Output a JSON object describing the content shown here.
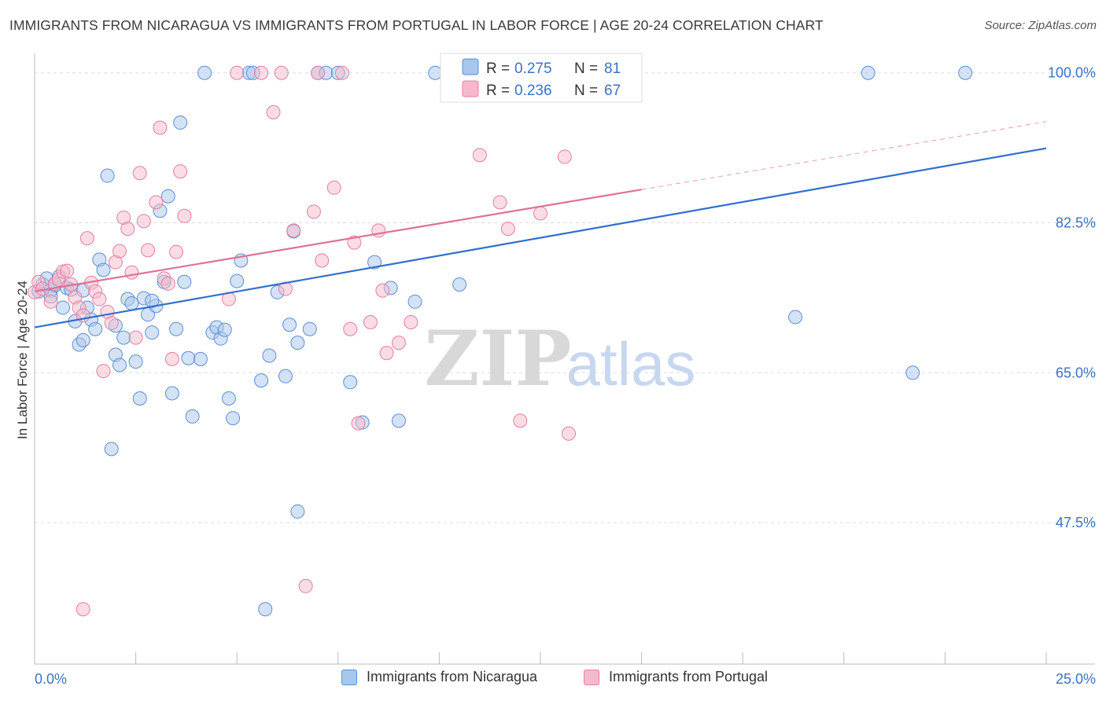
{
  "title": "IMMIGRANTS FROM NICARAGUA VS IMMIGRANTS FROM PORTUGAL IN LABOR FORCE | AGE 20-24 CORRELATION CHART",
  "source": "Source: ZipAtlas.com",
  "watermark": {
    "zip": "ZIP",
    "atlas": "atlas"
  },
  "colors": {
    "blue_fill": "#a9c6ec",
    "blue_stroke": "#5b8fd6",
    "blue_line": "#2f6fce",
    "pink_fill": "#f5b9cc",
    "pink_stroke": "#e57fa0",
    "pink_line": "#e0709a",
    "axis_label_blue": "#3b72c4",
    "grid": "#dddddd"
  },
  "legend_top": {
    "series1": {
      "r_label": "R = ",
      "r_value": "0.275",
      "n_label": "N = ",
      "n_value": "81"
    },
    "series2": {
      "r_label": "R = ",
      "r_value": "0.236",
      "n_label": "N = ",
      "n_value": "67"
    }
  },
  "chart_data": {
    "type": "scatter",
    "title": "IMMIGRANTS FROM NICARAGUA VS IMMIGRANTS FROM PORTUGAL IN LABOR FORCE | AGE 20-24 CORRELATION CHART",
    "xlabel": "",
    "ylabel": "In Labor Force | Age 20-24",
    "xlim": [
      0,
      25
    ],
    "ylim": [
      31,
      103
    ],
    "x_tick_labels": [
      "0.0%",
      "25.0%"
    ],
    "y_ticks": [
      47.5,
      65.0,
      82.5,
      100.0
    ],
    "y_tick_labels": [
      "47.5%",
      "65.0%",
      "82.5%",
      "100.0%"
    ],
    "grid": true,
    "legend_placement": "bottom",
    "series": [
      {
        "name": "Immigrants from Nicaragua",
        "color": "#5b8fd6",
        "trend": {
          "x": [
            0,
            25
          ],
          "y": [
            70.3,
            91.2
          ],
          "dashed_from": null
        },
        "points": [
          [
            0.1,
            74.5
          ],
          [
            0.2,
            75.3
          ],
          [
            0.3,
            76.0
          ],
          [
            0.4,
            74.6
          ],
          [
            0.5,
            75.2
          ],
          [
            0.6,
            76.2
          ],
          [
            0.7,
            72.6
          ],
          [
            0.8,
            74.9
          ],
          [
            0.9,
            74.7
          ],
          [
            1.0,
            71.0
          ],
          [
            1.1,
            68.3
          ],
          [
            1.2,
            68.8
          ],
          [
            1.3,
            72.6
          ],
          [
            1.4,
            71.2
          ],
          [
            1.5,
            70.1
          ],
          [
            1.6,
            78.2
          ],
          [
            1.7,
            77.0
          ],
          [
            1.8,
            88.0
          ],
          [
            1.9,
            56.1
          ],
          [
            2.0,
            67.1
          ],
          [
            2.1,
            65.9
          ],
          [
            2.2,
            69.1
          ],
          [
            2.3,
            73.6
          ],
          [
            2.4,
            73.1
          ],
          [
            2.5,
            66.3
          ],
          [
            2.6,
            62.0
          ],
          [
            2.7,
            73.7
          ],
          [
            2.8,
            71.8
          ],
          [
            2.9,
            69.7
          ],
          [
            3.0,
            72.8
          ],
          [
            3.1,
            83.9
          ],
          [
            3.2,
            75.6
          ],
          [
            3.3,
            85.6
          ],
          [
            3.4,
            62.6
          ],
          [
            3.5,
            70.1
          ],
          [
            3.6,
            94.2
          ],
          [
            3.8,
            66.7
          ],
          [
            3.9,
            59.9
          ],
          [
            4.4,
            69.7
          ],
          [
            4.5,
            70.3
          ],
          [
            4.6,
            69.0
          ],
          [
            4.7,
            70.0
          ],
          [
            4.8,
            62.0
          ],
          [
            4.9,
            59.7
          ],
          [
            5.0,
            75.7
          ],
          [
            5.1,
            78.1
          ],
          [
            5.6,
            64.1
          ],
          [
            5.8,
            67.0
          ],
          [
            6.0,
            74.4
          ],
          [
            6.2,
            64.6
          ],
          [
            6.3,
            70.6
          ],
          [
            6.4,
            81.5
          ],
          [
            6.5,
            68.5
          ],
          [
            6.5,
            48.8
          ],
          [
            6.8,
            70.1
          ],
          [
            7.0,
            100.0
          ],
          [
            7.2,
            100.0
          ],
          [
            7.5,
            100.0
          ],
          [
            7.8,
            63.9
          ],
          [
            8.1,
            59.2
          ],
          [
            8.4,
            77.9
          ],
          [
            8.8,
            74.9
          ],
          [
            9.0,
            59.4
          ],
          [
            9.4,
            73.3
          ],
          [
            9.9,
            100.0
          ],
          [
            10.4,
            100.0
          ],
          [
            10.5,
            75.3
          ],
          [
            5.7,
            37.4
          ],
          [
            18.8,
            71.5
          ],
          [
            20.6,
            100.0
          ],
          [
            23.0,
            100.0
          ],
          [
            21.7,
            65.0
          ],
          [
            4.2,
            100.0
          ],
          [
            5.3,
            100.0
          ],
          [
            5.4,
            100.0
          ],
          [
            4.1,
            66.6
          ],
          [
            2.0,
            70.5
          ],
          [
            1.2,
            74.6
          ],
          [
            0.4,
            73.9
          ],
          [
            2.9,
            73.4
          ],
          [
            3.7,
            75.6
          ]
        ]
      },
      {
        "name": "Immigrants from Portugal",
        "color": "#e57fa0",
        "trend": {
          "x": [
            0,
            25
          ],
          "y": [
            74.5,
            94.3
          ],
          "dashed_from": 15.0
        },
        "points": [
          [
            0.0,
            74.4
          ],
          [
            0.1,
            75.6
          ],
          [
            0.2,
            74.8
          ],
          [
            0.4,
            73.3
          ],
          [
            0.5,
            75.4
          ],
          [
            0.6,
            75.9
          ],
          [
            0.7,
            76.8
          ],
          [
            0.8,
            76.9
          ],
          [
            0.9,
            75.3
          ],
          [
            1.0,
            73.8
          ],
          [
            1.1,
            72.6
          ],
          [
            1.2,
            71.7
          ],
          [
            1.3,
            80.7
          ],
          [
            1.4,
            75.5
          ],
          [
            1.5,
            74.5
          ],
          [
            1.6,
            73.6
          ],
          [
            1.7,
            65.2
          ],
          [
            1.8,
            72.1
          ],
          [
            1.9,
            70.8
          ],
          [
            2.0,
            77.9
          ],
          [
            2.1,
            79.2
          ],
          [
            2.2,
            83.1
          ],
          [
            2.3,
            81.8
          ],
          [
            2.4,
            76.7
          ],
          [
            2.5,
            69.1
          ],
          [
            2.6,
            88.3
          ],
          [
            2.7,
            82.7
          ],
          [
            2.8,
            79.3
          ],
          [
            3.0,
            84.9
          ],
          [
            3.1,
            93.6
          ],
          [
            3.2,
            76.0
          ],
          [
            3.3,
            75.4
          ],
          [
            3.4,
            66.6
          ],
          [
            3.5,
            79.1
          ],
          [
            3.6,
            88.5
          ],
          [
            3.7,
            83.3
          ],
          [
            4.8,
            73.6
          ],
          [
            5.9,
            95.4
          ],
          [
            6.2,
            74.8
          ],
          [
            6.4,
            81.6
          ],
          [
            6.7,
            40.1
          ],
          [
            6.9,
            83.8
          ],
          [
            7.1,
            78.1
          ],
          [
            7.4,
            86.6
          ],
          [
            7.6,
            100.0
          ],
          [
            7.8,
            70.1
          ],
          [
            7.9,
            80.2
          ],
          [
            8.3,
            70.9
          ],
          [
            8.5,
            81.6
          ],
          [
            8.6,
            74.6
          ],
          [
            8.7,
            67.3
          ],
          [
            9.0,
            68.5
          ],
          [
            9.3,
            70.9
          ],
          [
            11.0,
            90.4
          ],
          [
            11.5,
            84.9
          ],
          [
            11.7,
            81.8
          ],
          [
            11.9,
            100.0
          ],
          [
            12.0,
            59.4
          ],
          [
            12.5,
            83.6
          ],
          [
            13.1,
            90.2
          ],
          [
            13.2,
            57.9
          ],
          [
            8.0,
            59.1
          ],
          [
            1.2,
            37.4
          ],
          [
            5.0,
            100.0
          ],
          [
            5.6,
            100.0
          ],
          [
            6.1,
            100.0
          ],
          [
            7.0,
            100.0
          ]
        ]
      }
    ]
  },
  "legend_bottom": {
    "series1_label": "Immigrants from Nicaragua",
    "series2_label": "Immigrants from Portugal"
  }
}
